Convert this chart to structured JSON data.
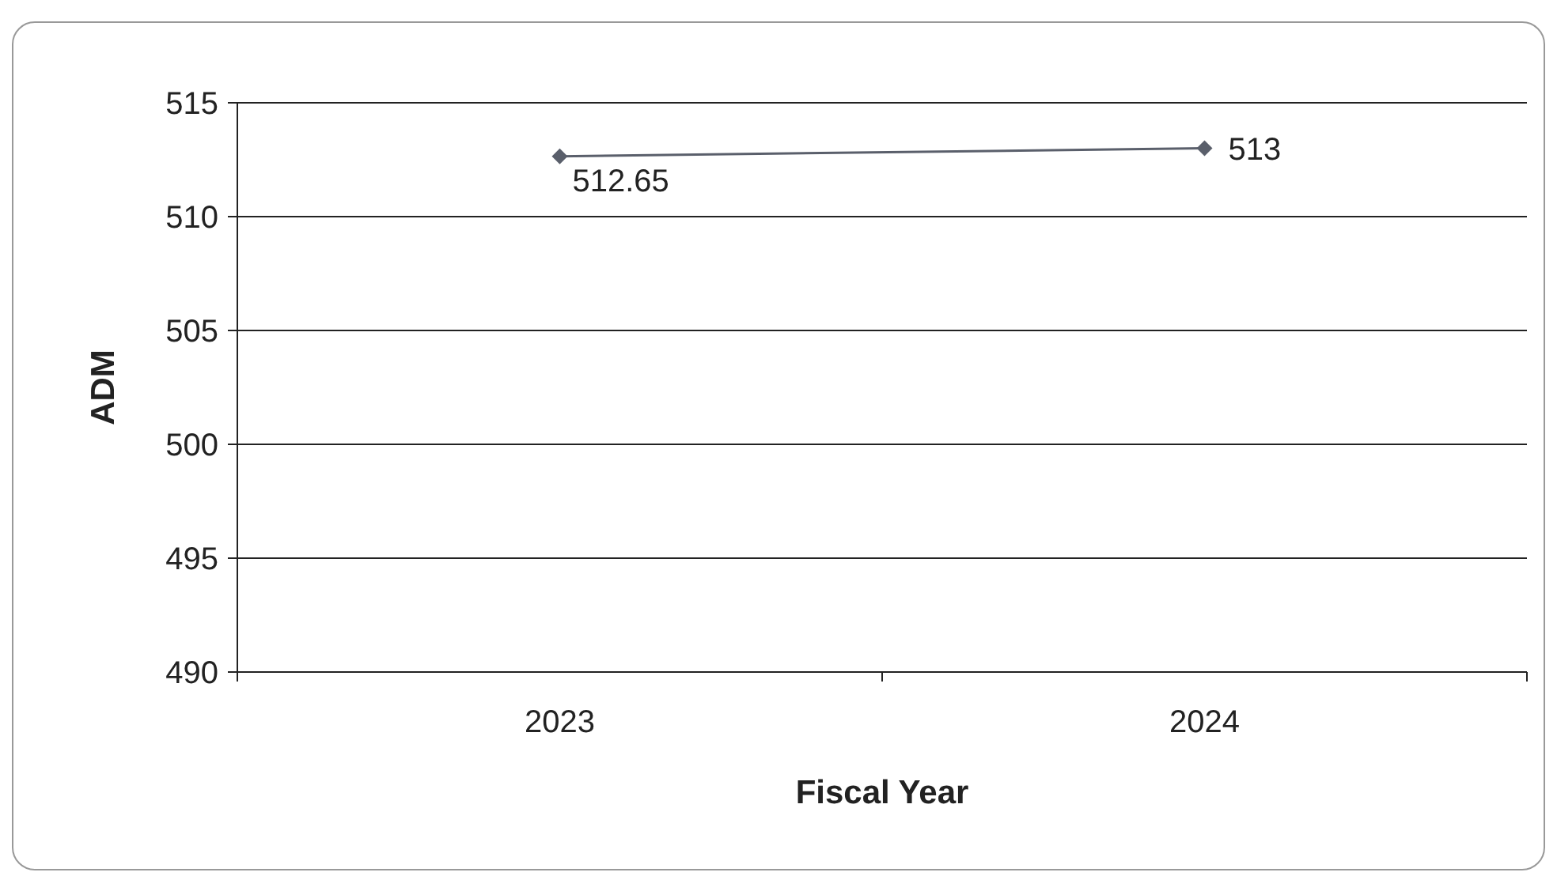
{
  "chart_data": {
    "type": "line",
    "xlabel": "Fiscal Year",
    "ylabel": "ADM",
    "categories": [
      "2023",
      "2024"
    ],
    "series": [
      {
        "color": "#5a5f6b",
        "values": [
          512.65,
          513
        ]
      }
    ],
    "ylim": [
      490,
      515
    ],
    "yticks": [
      490,
      495,
      500,
      505,
      510,
      515
    ],
    "grid": "y",
    "marker": "diamond",
    "data_labels": true
  }
}
